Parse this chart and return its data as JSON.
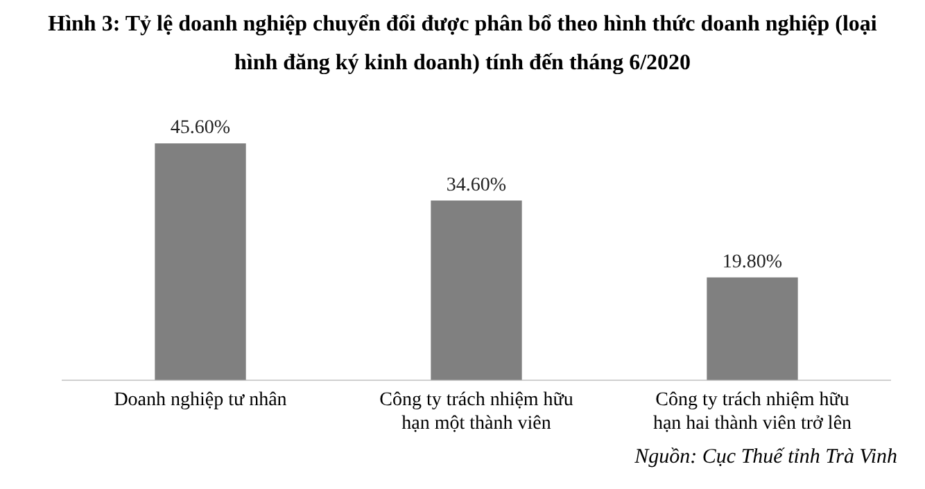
{
  "chart_data": {
    "type": "bar",
    "title": "Hình 3: Tỷ lệ doanh nghiệp chuyển đổi được phân bổ theo hình thức doanh nghiệp (loại hình đăng ký kinh doanh) tính đến tháng 6/2020",
    "categories": [
      "Doanh nghiệp tư nhân",
      "Công ty trách nhiệm hữu hạn một thành viên",
      "Công ty trách nhiệm hữu hạn hai thành viên trở lên"
    ],
    "values": [
      45.6,
      34.6,
      19.8
    ],
    "value_labels": [
      "45.60%",
      "34.60%",
      "19.80%"
    ],
    "color": "#808080",
    "grid": false,
    "legend": false,
    "annotations": [
      "Nguồn: Cục Thuế tỉnh Trà Vinh"
    ]
  }
}
